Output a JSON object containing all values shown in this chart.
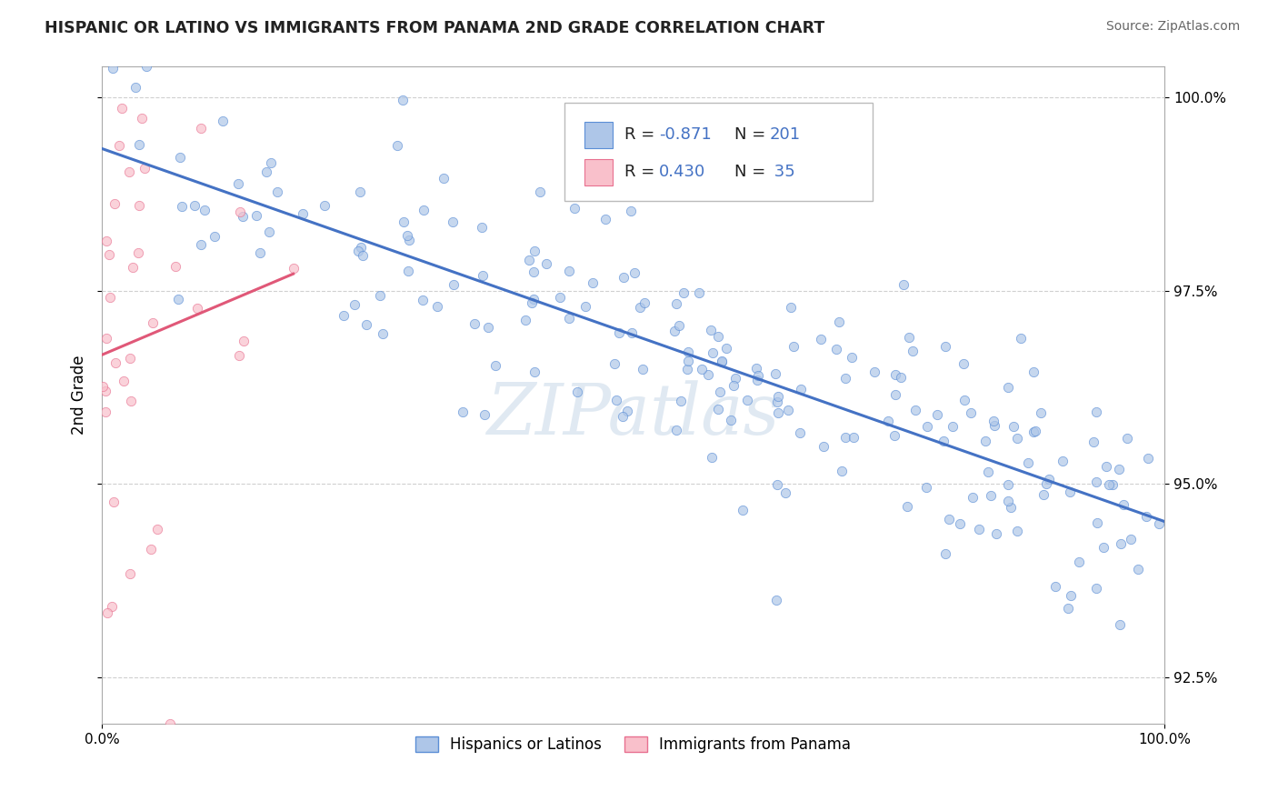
{
  "title": "HISPANIC OR LATINO VS IMMIGRANTS FROM PANAMA 2ND GRADE CORRELATION CHART",
  "source": "Source: ZipAtlas.com",
  "ylabel": "2nd Grade",
  "xlim": [
    0.0,
    1.0
  ],
  "ylim": [
    0.919,
    1.004
  ],
  "yticks": [
    0.925,
    0.95,
    0.975,
    1.0
  ],
  "ytick_labels": [
    "92.5%",
    "95.0%",
    "97.5%",
    "100.0%"
  ],
  "xticks": [
    0.0,
    1.0
  ],
  "xtick_labels": [
    "0.0%",
    "100.0%"
  ],
  "blue_R": -0.871,
  "blue_N": 201,
  "pink_R": 0.43,
  "pink_N": 35,
  "blue_color": "#aec6e8",
  "blue_edge_color": "#5b8ed6",
  "blue_line_color": "#4472c4",
  "pink_color": "#f9c0cb",
  "pink_edge_color": "#e87090",
  "pink_line_color": "#e05878",
  "legend_blue_label": "Hispanics or Latinos",
  "legend_pink_label": "Immigrants from Panama",
  "watermark": "ZIPatlas",
  "background_color": "#ffffff",
  "grid_color": "#d0d0d0",
  "text_color_blue": "#4472c4",
  "text_color_black": "#222222"
}
